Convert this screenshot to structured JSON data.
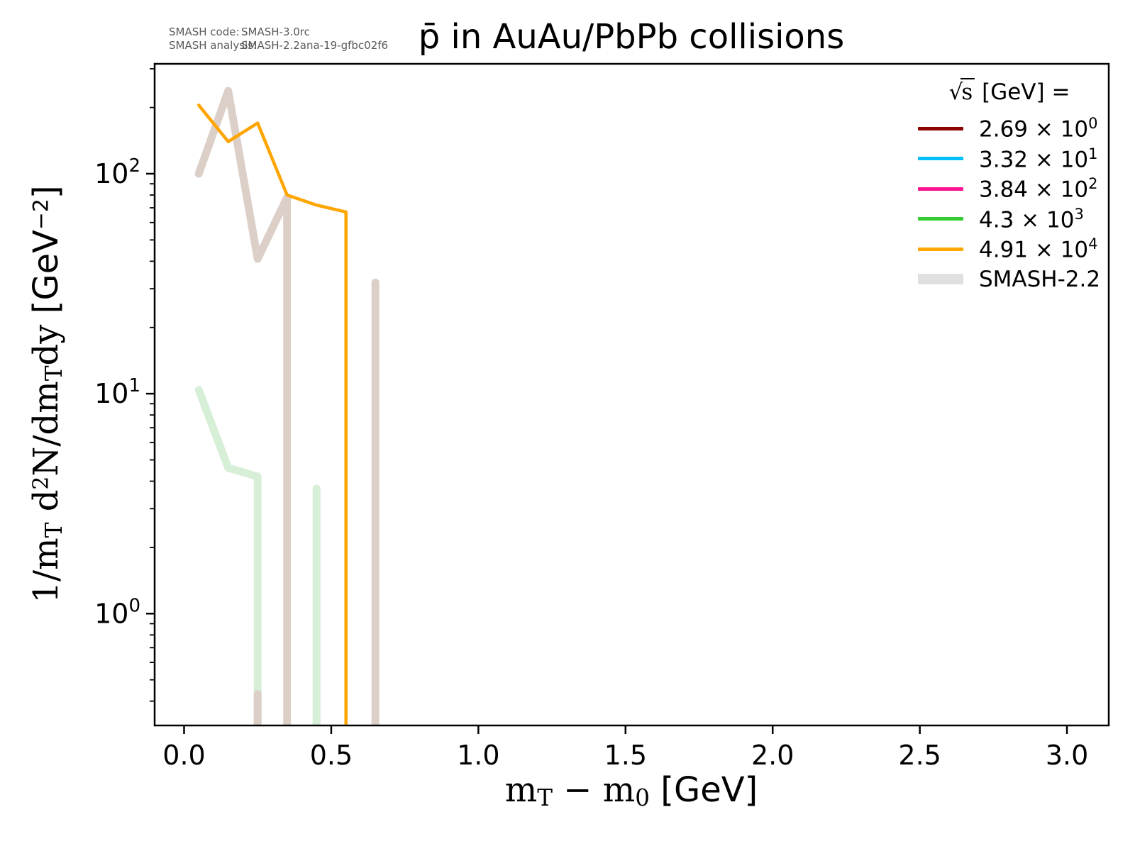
{
  "title": "p̄ in AuAu/PbPb collisions",
  "annotation": {
    "rows": [
      {
        "label": "SMASH code:",
        "value": "SMASH-3.0rc"
      },
      {
        "label": "SMASH analysis:",
        "value": "SMASH-2.2ana-19-gfbc02f6"
      }
    ]
  },
  "xlabel": {
    "m1": "m",
    "s1": "T",
    "minus": " − ",
    "m2": "m",
    "s2": "0",
    "unit": " [GeV]"
  },
  "ylabel": {
    "p1": "1/m",
    "s1": "T",
    "p2": " d",
    "e1": "2",
    "p3": "N/dm",
    "s2": "T",
    "p4": "dy ",
    "u1": "[GeV",
    "u2": "−2",
    "u3": "]"
  },
  "legend": {
    "title": {
      "radical": "√",
      "radicand": "s",
      "rest": " [GeV] ="
    },
    "entries": [
      {
        "color": "#8b0000",
        "thick": false,
        "mantissa": "2.69",
        "exp": "0"
      },
      {
        "color": "#00bfff",
        "thick": false,
        "mantissa": "3.32",
        "exp": "1"
      },
      {
        "color": "#ff1493",
        "thick": false,
        "mantissa": "3.84",
        "exp": "2"
      },
      {
        "color": "#32cd32",
        "thick": false,
        "mantissa": "4.3",
        "exp": "3"
      },
      {
        "color": "#ffa500",
        "thick": false,
        "mantissa": "4.91",
        "exp": "4"
      },
      {
        "color": "#e0e0e0",
        "thick": true,
        "label": "SMASH-2.2"
      }
    ]
  },
  "chart_data": {
    "type": "line",
    "title": "p̄ in AuAu/PbPb collisions",
    "xlabel": "m_T - m_0 [GeV]",
    "ylabel": "1/m_T d^2N/dm_T dy [GeV^-2]",
    "xscale": "linear",
    "yscale": "log",
    "xlim": [
      -0.1,
      3.142
    ],
    "ylim": [
      0.31,
      316
    ],
    "xticks": [
      0.0,
      0.5,
      1.0,
      1.5,
      2.0,
      2.5,
      3.0
    ],
    "yticks": [
      {
        "v": 1,
        "exp": "0"
      },
      {
        "v": 10,
        "exp": "1"
      },
      {
        "v": 100,
        "exp": "2"
      }
    ],
    "legend_position": "upper right",
    "grid": false,
    "series": [
      {
        "name": "smash22-green-4.3e3",
        "label": "SMASH-2.2, sqrt(s)=4.3e3 GeV",
        "color": "#d6efd6",
        "width": 11,
        "points": [
          [
            0.05,
            10.4
          ],
          [
            0.15,
            4.6
          ],
          [
            0.25,
            4.2
          ],
          [
            0.25,
            0.2
          ]
        ]
      },
      {
        "name": "smash22-green-4.3e3-bar",
        "label": "SMASH-2.2, sqrt(s)=4.3e3 GeV (isolated bin at 0.45)",
        "color": "#d6efd6",
        "width": 11,
        "points": [
          [
            0.45,
            3.7
          ],
          [
            0.45,
            0.2
          ]
        ]
      },
      {
        "name": "smash22-gray-main",
        "label": "SMASH-2.2 reference",
        "color": "#dccfc8",
        "width": 11,
        "points": [
          [
            0.05,
            100
          ],
          [
            0.15,
            238
          ],
          [
            0.25,
            41
          ],
          [
            0.35,
            78
          ],
          [
            0.35,
            0.2
          ]
        ]
      },
      {
        "name": "smash22-gray-bar-025",
        "label": "SMASH-2.2 reference (bin at 0.25)",
        "color": "#dccfc8",
        "width": 11,
        "points": [
          [
            0.25,
            0.43
          ],
          [
            0.25,
            0.2
          ]
        ]
      },
      {
        "name": "smash22-gray-bar-065",
        "label": "SMASH-2.2 reference (bin at 0.65)",
        "color": "#dccfc8",
        "width": 11,
        "points": [
          [
            0.65,
            32
          ],
          [
            0.65,
            0.2
          ]
        ]
      },
      {
        "name": "smash30-orange-4.91e4",
        "label": "sqrt(s)=4.91e4 GeV",
        "color": "#ffa500",
        "width": 4.5,
        "points": [
          [
            0.05,
            205
          ],
          [
            0.15,
            140
          ],
          [
            0.25,
            170
          ],
          [
            0.35,
            80
          ],
          [
            0.45,
            72
          ],
          [
            0.55,
            67
          ],
          [
            0.55,
            0.2
          ]
        ]
      }
    ]
  }
}
